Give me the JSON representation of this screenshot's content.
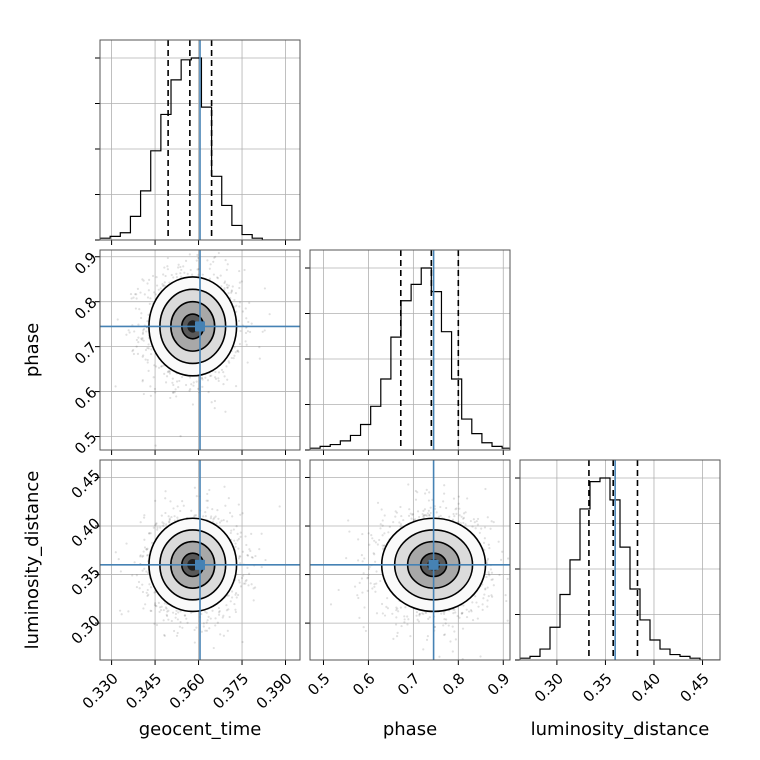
{
  "chart_data": {
    "type": "corner",
    "parameters": [
      {
        "name": "geocent_time",
        "label": "geocent_time",
        "range": [
          0.326,
          0.395
        ],
        "ticks": [
          0.33,
          0.345,
          0.36,
          0.375,
          0.39
        ],
        "tick_labels": [
          "0.330",
          "0.345",
          "0.360",
          "0.375",
          "0.390"
        ],
        "truth": 0.3605,
        "quantiles": [
          0.3495,
          0.357,
          0.3645
        ],
        "hist_edges": [
          0.326,
          0.3295,
          0.333,
          0.3365,
          0.34,
          0.3435,
          0.347,
          0.3505,
          0.354,
          0.3575,
          0.361,
          0.3645,
          0.368,
          0.3715,
          0.375,
          0.3785,
          0.382,
          0.3855,
          0.389,
          0.3925,
          0.395
        ],
        "hist_counts": [
          0.01,
          0.02,
          0.04,
          0.13,
          0.27,
          0.49,
          0.69,
          0.88,
          0.99,
          1.0,
          0.73,
          0.35,
          0.19,
          0.08,
          0.03,
          0.01,
          0.0,
          0.0,
          0.0,
          0.0
        ]
      },
      {
        "name": "phase",
        "label": "phase",
        "range": [
          0.47,
          0.915
        ],
        "ticks": [
          0.5,
          0.6,
          0.7,
          0.8,
          0.9
        ],
        "tick_labels": [
          "0.5",
          "0.6",
          "0.7",
          "0.8",
          "0.9"
        ],
        "truth": 0.745,
        "quantiles": [
          0.672,
          0.74,
          0.8
        ],
        "hist_edges": [
          0.47,
          0.4925,
          0.515,
          0.5375,
          0.56,
          0.5825,
          0.605,
          0.6275,
          0.65,
          0.6725,
          0.695,
          0.7175,
          0.74,
          0.7625,
          0.785,
          0.8075,
          0.83,
          0.8525,
          0.875,
          0.8975,
          0.915
        ],
        "hist_counts": [
          0.01,
          0.02,
          0.03,
          0.05,
          0.08,
          0.14,
          0.24,
          0.39,
          0.62,
          0.82,
          0.91,
          1.0,
          0.87,
          0.65,
          0.39,
          0.17,
          0.09,
          0.04,
          0.02,
          0.01
        ]
      },
      {
        "name": "luminosity_distance",
        "label": "luminosity_distance",
        "range": [
          0.262,
          0.468
        ],
        "ticks": [
          0.3,
          0.35,
          0.4,
          0.45
        ],
        "tick_labels": [
          "0.30",
          "0.35",
          "0.40",
          "0.45"
        ],
        "truth": 0.36,
        "quantiles": [
          0.333,
          0.358,
          0.383
        ],
        "hist_edges": [
          0.262,
          0.2723,
          0.2826,
          0.2929,
          0.3032,
          0.3135,
          0.3238,
          0.3341,
          0.3444,
          0.3547,
          0.365,
          0.3753,
          0.3856,
          0.3959,
          0.4062,
          0.4165,
          0.4268,
          0.4371,
          0.4474,
          0.4577,
          0.468
        ],
        "hist_counts": [
          0.01,
          0.02,
          0.06,
          0.18,
          0.36,
          0.55,
          0.83,
          0.98,
          1.0,
          0.88,
          0.62,
          0.39,
          0.22,
          0.11,
          0.06,
          0.03,
          0.02,
          0.01,
          0.0,
          0.0
        ]
      }
    ],
    "joint": [
      {
        "x": "geocent_time",
        "y": "phase",
        "center": [
          0.358,
          0.745
        ],
        "spread": [
          0.0072,
          0.055
        ],
        "corr": 0.0
      },
      {
        "x": "geocent_time",
        "y": "luminosity_distance",
        "center": [
          0.358,
          0.36
        ],
        "spread": [
          0.0072,
          0.024
        ],
        "corr": 0.0
      },
      {
        "x": "phase",
        "y": "luminosity_distance",
        "center": [
          0.745,
          0.36
        ],
        "spread": [
          0.055,
          0.024
        ],
        "corr": 0.0
      }
    ],
    "contour_levels_sigma": [
      0.5,
      1.0,
      1.5,
      2.0
    ],
    "truth_color": "#4682b4",
    "grid": true
  }
}
